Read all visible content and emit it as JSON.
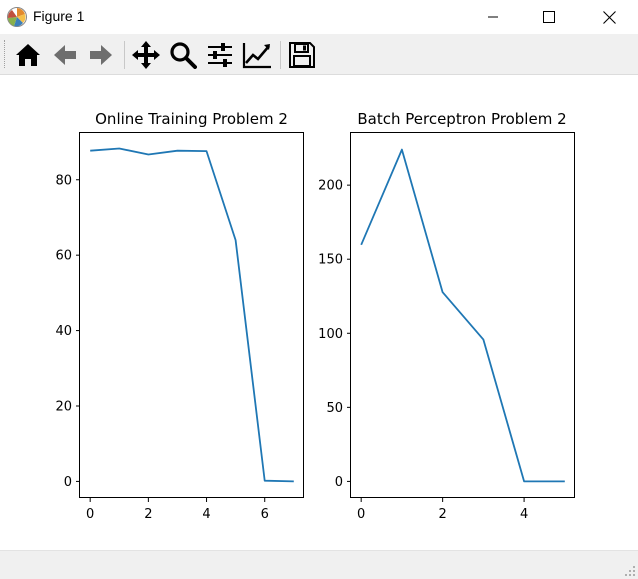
{
  "window": {
    "title": "Figure 1",
    "controls": {
      "minimize": "minimize",
      "maximize": "maximize",
      "close": "close"
    }
  },
  "toolbar": {
    "tools": [
      "home-icon",
      "back-arrow-icon",
      "forward-arrow-icon",
      "pan-move-icon",
      "zoom-magnifier-icon",
      "configure-subplots-icon",
      "edit-axis-curves-icon",
      "save-floppy-icon"
    ]
  },
  "colors": {
    "line": "#1f77b4",
    "toolbar_bg": "#f0f0f0"
  },
  "chart_data": [
    {
      "type": "line",
      "title": "Online Training Problem 2",
      "xlabel": "",
      "ylabel": "",
      "x": [
        0,
        1,
        2,
        3,
        4,
        5,
        6,
        7
      ],
      "series": [
        {
          "values": [
            87.7,
            88.3,
            86.7,
            87.7,
            87.6,
            64.0,
            0.2,
            0.0
          ]
        }
      ],
      "xlim": [
        -0.35,
        7.35
      ],
      "ylim": [
        -4.4,
        92.4
      ],
      "xticks": [
        0,
        2,
        4,
        6
      ],
      "yticks": [
        0,
        20,
        40,
        60,
        80
      ],
      "grid": false
    },
    {
      "type": "line",
      "title": "Batch Perceptron Problem 2",
      "xlabel": "",
      "ylabel": "",
      "x": [
        0,
        1,
        2,
        3,
        4,
        5
      ],
      "series": [
        {
          "values": [
            159.7,
            224.0,
            127.7,
            95.7,
            0.0,
            0.0
          ]
        }
      ],
      "xlim": [
        -0.25,
        5.25
      ],
      "ylim": [
        -11.2,
        235.2
      ],
      "xticks": [
        0,
        2,
        4
      ],
      "yticks": [
        0,
        50,
        100,
        150,
        200
      ],
      "grid": false
    }
  ]
}
